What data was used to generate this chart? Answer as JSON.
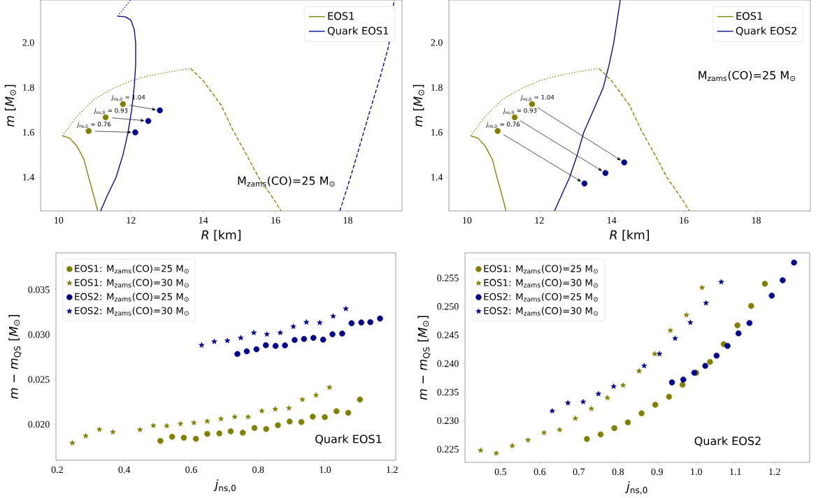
{
  "chart_data": [
    {
      "type": "line",
      "xlabel": "*R* [km]",
      "ylabel": "*m* [*M*$_{⊙}$]",
      "xlim": [
        9.5,
        19.5
      ],
      "ylim": [
        1.25,
        2.19
      ],
      "xticks": [
        10,
        12,
        14,
        16,
        18
      ],
      "yticks": [
        1.4,
        1.6,
        1.8,
        {
          "value": 2.0,
          "label": "2.0"
        }
      ],
      "legend": "top right",
      "series": [
        {
          "name": "EOS1",
          "color": "#808000",
          "line_style": "solid",
          "x": [
            10.1,
            10.3,
            10.5,
            10.7,
            10.83,
            10.95,
            11.08
          ],
          "values": [
            1.585,
            1.575,
            1.54,
            1.48,
            1.4,
            1.33,
            1.25
          ]
        },
        {
          "color": "#808000",
          "line_style": "dotted",
          "x": [
            10.1,
            10.5,
            11.0,
            11.5,
            12.0,
            12.5,
            13.0,
            13.65
          ],
          "values": [
            1.585,
            1.67,
            1.75,
            1.795,
            1.83,
            1.852,
            1.868,
            1.885
          ]
        },
        {
          "color": "#808000",
          "line_style": "dashed",
          "x": [
            13.65,
            14.0,
            14.18,
            14.5,
            14.82,
            15.2,
            15.53,
            16.0,
            16.15
          ],
          "values": [
            1.885,
            1.83,
            1.79,
            1.72,
            1.61,
            1.5,
            1.4,
            1.29,
            1.25
          ]
        },
        {
          "name": "Quark EOS1",
          "color": "#00008b",
          "line_style": "solid",
          "x": [
            11.16,
            11.35,
            11.59,
            11.78,
            11.92,
            12.02,
            12.09,
            12.13,
            12.13,
            12.09,
            12.0,
            11.85,
            11.63
          ],
          "values": [
            1.25,
            1.32,
            1.4,
            1.5,
            1.6,
            1.7,
            1.8,
            1.9,
            2.0,
            2.06,
            2.1,
            2.115,
            2.118
          ]
        },
        {
          "color": "#00008b",
          "line_style": "dotted",
          "x": [
            11.63,
            11.99
          ],
          "values": [
            2.118,
            2.19
          ]
        },
        {
          "color": "#00008b",
          "line_style": "dashed",
          "x": [
            17.78,
            18.1,
            18.57,
            18.9,
            19.13,
            19.28
          ],
          "values": [
            1.25,
            1.414,
            1.673,
            1.85,
            1.985,
            2.19
          ]
        },
        {
          "type": "scatter",
          "marker": "circle",
          "color": "#808000",
          "x": [
            10.83,
            11.3,
            11.78
          ],
          "values": [
            1.606,
            1.667,
            1.726
          ]
        },
        {
          "type": "scatter",
          "marker": "circle",
          "color": "#00008b",
          "x": [
            12.12,
            12.48,
            12.8
          ],
          "values": [
            1.6,
            1.651,
            1.698
          ]
        }
      ],
      "annotations": [
        {
          "text": "*j*$_{ns,0}$ = 0.76",
          "x": 10.83,
          "y": 1.606
        },
        {
          "text": "*j*$_{ns,0}$ = 0.93",
          "x": 11.3,
          "y": 1.667
        },
        {
          "text": "*j*$_{ns,0}$ = 1.04",
          "x": 11.78,
          "y": 1.726
        },
        "M$_{zams}$(CO)=25 M$_{⊙}$"
      ]
    },
    {
      "type": "line",
      "xlabel": "*R* [km]",
      "ylabel": "*m* [*M*$_{⊙}$]",
      "xlim": [
        9.5,
        19.5
      ],
      "ylim": [
        1.25,
        2.19
      ],
      "xticks": [
        10,
        12,
        14,
        16,
        18
      ],
      "yticks": [
        1.4,
        1.6,
        1.8,
        {
          "value": 2.0,
          "label": "2.0"
        }
      ],
      "legend": "top right",
      "series": [
        {
          "name": "EOS1",
          "color": "#808000",
          "line_style": "solid",
          "x": [
            10.1,
            10.3,
            10.5,
            10.7,
            10.83,
            10.95,
            11.08
          ],
          "values": [
            1.585,
            1.575,
            1.54,
            1.48,
            1.4,
            1.33,
            1.25
          ]
        },
        {
          "color": "#808000",
          "line_style": "dotted",
          "x": [
            10.1,
            10.5,
            11.0,
            11.5,
            12.0,
            12.5,
            13.0,
            13.65
          ],
          "values": [
            1.585,
            1.67,
            1.75,
            1.795,
            1.83,
            1.852,
            1.868,
            1.885
          ]
        },
        {
          "color": "#808000",
          "line_style": "dashed",
          "x": [
            13.65,
            14.0,
            14.18,
            14.5,
            14.82,
            15.2,
            15.53,
            16.0,
            16.15
          ],
          "values": [
            1.885,
            1.83,
            1.79,
            1.72,
            1.61,
            1.5,
            1.4,
            1.29,
            1.25
          ]
        },
        {
          "name": "Quark EOS2",
          "color": "#00008b",
          "line_style": "solid",
          "x": [
            12.42,
            12.84,
            13.05,
            13.23,
            13.5,
            13.77,
            13.93,
            14.06,
            14.24
          ],
          "values": [
            1.25,
            1.4,
            1.5,
            1.6,
            1.7,
            1.8,
            1.9,
            2.0,
            2.19
          ]
        },
        {
          "type": "scatter",
          "marker": "circle",
          "color": "#808000",
          "x": [
            10.85,
            11.32,
            11.8
          ],
          "values": [
            1.606,
            1.667,
            1.726
          ]
        },
        {
          "type": "scatter",
          "marker": "circle",
          "color": "#00008b",
          "x": [
            13.25,
            13.83,
            14.35
          ],
          "values": [
            1.372,
            1.419,
            1.466
          ]
        }
      ],
      "annotations": [
        {
          "text": "*j*$_{ns,0}$ = 0.76",
          "x": 10.85,
          "y": 1.606
        },
        {
          "text": "*j*$_{ns,0}$ = 0.93",
          "x": 11.32,
          "y": 1.667
        },
        {
          "text": "*j*$_{ns,0}$ = 1.04",
          "x": 11.8,
          "y": 1.726
        },
        "M$_{zams}$(CO)=25 M$_{⊙}$"
      ]
    },
    {
      "type": "scatter",
      "xlabel": "*j*$_{ns,0}$",
      "ylabel": "*m* − *m*$_{QS}$ [*M*$_{⊙}$]",
      "xlim": [
        0.196,
        1.211
      ],
      "ylim": [
        0.016,
        0.0391
      ],
      "xticks": [
        0.2,
        0.4,
        0.6,
        0.8,
        {
          "value": 1.0,
          "label": "1.0"
        },
        1.2
      ],
      "yticks": [
        {
          "value": 0.02,
          "label": "0.020"
        },
        0.025,
        {
          "value": 0.03,
          "label": "0.030"
        },
        0.035
      ],
      "legend": "top left",
      "series": [
        {
          "name": "EOS1: M$_{zams}$(CO)=25 M$_{⊙}$",
          "marker": "circle",
          "color": "#808000",
          "x": [
            0.508,
            0.543,
            0.578,
            0.614,
            0.648,
            0.684,
            0.718,
            0.754,
            0.789,
            0.824,
            0.859,
            0.894,
            0.929,
            0.963,
            0.999,
            1.034,
            1.069,
            1.104
          ],
          "values": [
            0.01816,
            0.01862,
            0.01851,
            0.01839,
            0.01894,
            0.01899,
            0.01922,
            0.01908,
            0.0196,
            0.01948,
            0.01991,
            0.02032,
            0.02026,
            0.02086,
            0.0208,
            0.02147,
            0.02129,
            0.02276
          ]
        },
        {
          "name": "EOS1: M$_{zams}$(CO)=30 M$_{⊙}$",
          "marker": "star",
          "color": "#808000",
          "x": [
            0.245,
            0.285,
            0.326,
            0.366,
            0.447,
            0.487,
            0.527,
            0.568,
            0.608,
            0.648,
            0.689,
            0.73,
            0.77,
            0.811,
            0.851,
            0.892,
            0.932,
            0.973,
            1.013
          ],
          "values": [
            0.01793,
            0.01871,
            0.01943,
            0.01914,
            0.0194,
            0.01986,
            0.01983,
            0.02006,
            0.02017,
            0.02034,
            0.0206,
            0.02083,
            0.02083,
            0.02149,
            0.0217,
            0.02181,
            0.02276,
            0.02325,
            0.02411
          ]
        },
        {
          "name": "EOS2: M$_{zams}$(CO)=25 M$_{⊙}$",
          "marker": "circle",
          "color": "#00008b",
          "x": [
            0.738,
            0.766,
            0.795,
            0.823,
            0.852,
            0.88,
            0.909,
            0.937,
            0.965,
            0.994,
            1.022,
            1.051,
            1.079,
            1.108,
            1.135,
            1.164
          ],
          "values": [
            0.02784,
            0.02813,
            0.02836,
            0.02882,
            0.02874,
            0.02879,
            0.0294,
            0.02951,
            0.02963,
            0.02943,
            0.03003,
            0.03011,
            0.03126,
            0.03135,
            0.03138,
            0.03178
          ]
        },
        {
          "name": "EOS2: M$_{zams}$(CO)=30 M$_{⊙}$",
          "marker": "star",
          "color": "#00008b",
          "x": [
            0.631,
            0.669,
            0.708,
            0.748,
            0.787,
            0.826,
            0.866,
            0.905,
            0.944,
            0.984,
            1.024,
            1.062
          ],
          "values": [
            0.02882,
            0.02922,
            0.02931,
            0.02963,
            0.0302,
            0.03003,
            0.0302,
            0.03089,
            0.03138,
            0.03132,
            0.03204,
            0.03287
          ]
        }
      ],
      "annotations": [
        "Quark EOS1"
      ]
    },
    {
      "type": "scatter",
      "xlabel": "*j*$_{ns,0}$",
      "ylabel": "*m* − *m*$_{QS}$ [*M*$_{⊙}$]",
      "xlim": [
        0.409,
        1.29
      ],
      "ylim": [
        0.2227,
        0.2594
      ],
      "xticks": [
        0.5,
        0.6,
        0.7,
        0.8,
        0.9,
        {
          "value": 1.0,
          "label": "1.0"
        },
        1.1,
        1.2
      ],
      "yticks": [
        0.225,
        {
          "value": 0.23,
          "label": "0.230"
        },
        0.235,
        {
          "value": 0.24,
          "label": "0.240"
        },
        0.245,
        {
          "value": 0.25,
          "label": "0.250"
        },
        0.255
      ],
      "legend": "top left",
      "series": [
        {
          "name": "EOS1: M$_{zams}$(CO)=25 M$_{⊙}$",
          "marker": "circle",
          "color": "#808000",
          "x": [
            0.7205,
            0.7556,
            0.7907,
            0.8252,
            0.8603,
            0.8954,
            0.9305,
            0.9649,
            1.0,
            1.0351,
            1.0702,
            1.1053,
            1.1404,
            1.1755
          ],
          "values": [
            0.2268,
            0.2276,
            0.2287,
            0.2297,
            0.2313,
            0.2328,
            0.2342,
            0.2363,
            0.2384,
            0.2403,
            0.2434,
            0.2467,
            0.2501,
            0.254
          ]
        },
        {
          "name": "EOS1: M$_{zams}$(CO)=30 M$_{⊙}$",
          "marker": "star",
          "color": "#808000",
          "x": [
            0.449,
            0.489,
            0.53,
            0.57,
            0.611,
            0.651,
            0.691,
            0.732,
            0.773,
            0.813,
            0.854,
            0.894,
            0.934,
            0.975,
            1.015
          ],
          "values": [
            0.2248,
            0.2243,
            0.2256,
            0.2266,
            0.2279,
            0.2284,
            0.2304,
            0.2321,
            0.234,
            0.2362,
            0.2387,
            0.2417,
            0.2458,
            0.2485,
            0.2533
          ]
        },
        {
          "name": "EOS2: M$_{zams}$(CO)=25 M$_{⊙}$",
          "marker": "circle",
          "color": "#00008b",
          "x": [
            0.938,
            0.967,
            0.995,
            1.023,
            1.052,
            1.08,
            1.108,
            1.136,
            1.193,
            1.221,
            1.25
          ],
          "values": [
            0.2367,
            0.2372,
            0.2384,
            0.2396,
            0.2414,
            0.2431,
            0.2453,
            0.2471,
            0.2519,
            0.2546,
            0.2577
          ]
        },
        {
          "name": "EOS2: M$_{zams}$(CO)=30 M$_{⊙}$",
          "marker": "star",
          "color": "#00008b",
          "x": [
            0.632,
            0.672,
            0.711,
            0.75,
            0.789,
            0.867,
            0.906,
            0.946,
            0.985,
            1.025,
            1.064
          ],
          "values": [
            0.2317,
            0.2331,
            0.2333,
            0.2347,
            0.236,
            0.2396,
            0.2417,
            0.2444,
            0.2472,
            0.2506,
            0.2543
          ]
        }
      ],
      "annotations": [
        "Quark EOS2"
      ]
    }
  ]
}
